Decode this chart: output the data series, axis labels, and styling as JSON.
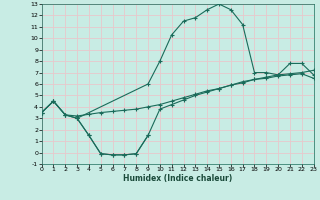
{
  "xlabel": "Humidex (Indice chaleur)",
  "background_color": "#c8ece4",
  "grid_color": "#e8c8cc",
  "line_color": "#1a6b5a",
  "xlim": [
    0,
    23
  ],
  "ylim": [
    -1,
    13
  ],
  "xticks": [
    0,
    1,
    2,
    3,
    4,
    5,
    6,
    7,
    8,
    9,
    10,
    11,
    12,
    13,
    14,
    15,
    16,
    17,
    18,
    19,
    20,
    21,
    22,
    23
  ],
  "yticks": [
    -1,
    0,
    1,
    2,
    3,
    4,
    5,
    6,
    7,
    8,
    9,
    10,
    11,
    12,
    13
  ],
  "line1_x": [
    0,
    1,
    2,
    3,
    9,
    10,
    11,
    12,
    13,
    14,
    15,
    16,
    17,
    18,
    19,
    20,
    21,
    22,
    23
  ],
  "line1_y": [
    3.5,
    4.5,
    3.3,
    3.0,
    6.0,
    8.0,
    10.3,
    11.5,
    11.8,
    12.5,
    13.0,
    12.5,
    11.2,
    7.0,
    7.0,
    6.8,
    7.8,
    7.8,
    6.8
  ],
  "line2_x": [
    0,
    1,
    2,
    3,
    4,
    5,
    6,
    7,
    8,
    9,
    10,
    11,
    12,
    13,
    14,
    15,
    16,
    17,
    18,
    19,
    20,
    21,
    22,
    23
  ],
  "line2_y": [
    3.5,
    4.5,
    3.3,
    3.2,
    3.35,
    3.5,
    3.6,
    3.7,
    3.8,
    4.0,
    4.2,
    4.5,
    4.8,
    5.1,
    5.4,
    5.6,
    5.9,
    6.2,
    6.4,
    6.6,
    6.8,
    6.9,
    7.0,
    7.2
  ],
  "line3_x": [
    0,
    1,
    2,
    3,
    4,
    5,
    6,
    7,
    8,
    9,
    10,
    11,
    12,
    13,
    14,
    15,
    16,
    17,
    18,
    19,
    20,
    21,
    22,
    23
  ],
  "line3_y": [
    3.5,
    4.5,
    3.3,
    3.0,
    1.5,
    -0.1,
    -0.2,
    -0.2,
    -0.1,
    1.5,
    3.8,
    4.2,
    4.6,
    5.0,
    5.3,
    5.6,
    5.9,
    6.1,
    6.4,
    6.5,
    6.7,
    6.8,
    6.9,
    6.5
  ],
  "line4_x": [
    3,
    4,
    5,
    6,
    7,
    8,
    9
  ],
  "line4_y": [
    3.0,
    1.5,
    -0.1,
    -0.2,
    -0.2,
    -0.1,
    1.5
  ],
  "marker_size": 2.5,
  "line_width": 0.8
}
